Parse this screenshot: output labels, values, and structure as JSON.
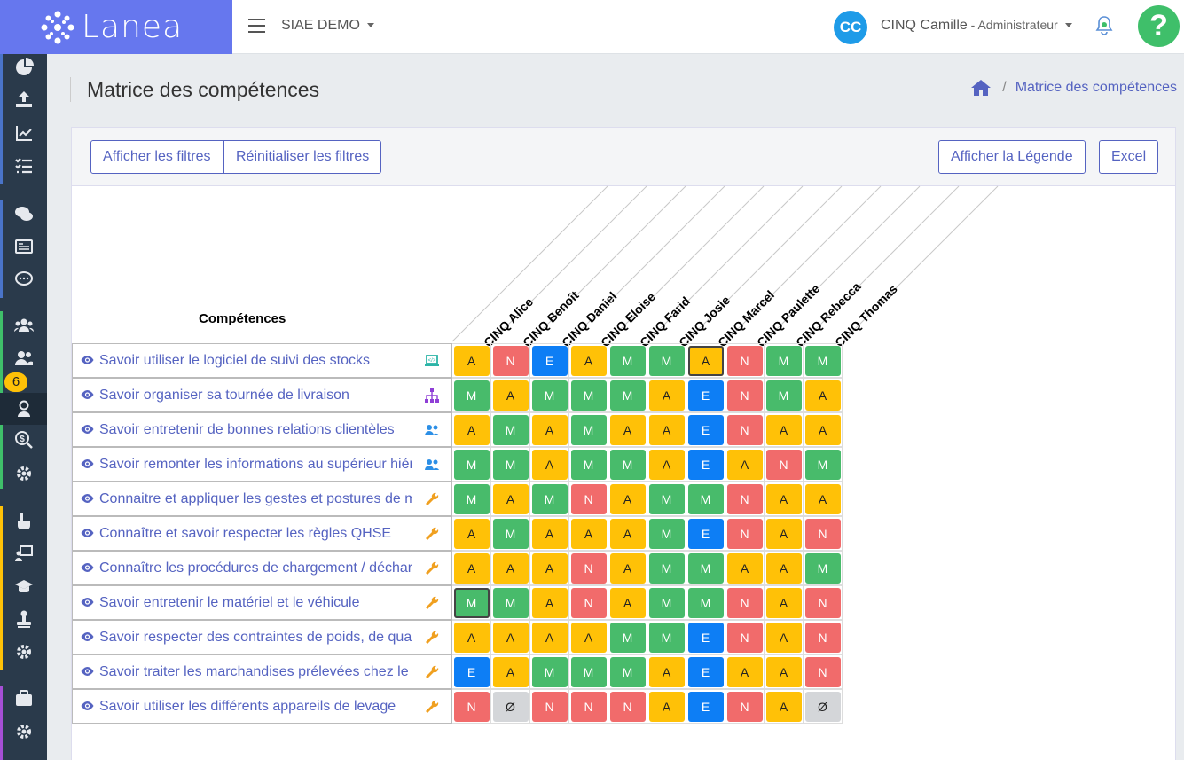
{
  "app": {
    "brand": "Lanea",
    "org": "SIAE DEMO",
    "avatar_initials": "CC",
    "user_name": "CINQ Camille",
    "user_role": " - Administrateur",
    "help": "?",
    "badge_count": "6"
  },
  "page": {
    "title": "Matrice des compétences",
    "breadcrumb": "Matrice des compétences"
  },
  "toolbar": {
    "show_filters": "Afficher les filtres",
    "reset_filters": "Réinitialiser les filtres",
    "show_legend": "Afficher la Légende",
    "excel": "Excel"
  },
  "matrix": {
    "competences_header": "Compétences",
    "people": [
      "CINQ Alice",
      "CINQ Benoît",
      "CINQ Daniel",
      "CINQ Eloise",
      "CINQ Farid",
      "CINQ Josie",
      "CINQ Marcel",
      "CINQ Paulette",
      "CINQ Rebecca",
      "CINQ Thomas"
    ],
    "rows": [
      {
        "label": "Savoir utiliser le logiciel de suivi des stocks",
        "icon": "laptop-icon",
        "values": [
          "A",
          "N",
          "E",
          "A",
          "M",
          "M",
          "A",
          "N",
          "M",
          "M"
        ]
      },
      {
        "label": "Savoir organiser sa tournée de livraison",
        "icon": "sitemap-icon",
        "values": [
          "M",
          "A",
          "M",
          "M",
          "M",
          "A",
          "E",
          "N",
          "M",
          "A"
        ]
      },
      {
        "label": "Savoir entretenir de bonnes relations clientèles",
        "icon": "users-icon",
        "values": [
          "A",
          "M",
          "A",
          "M",
          "A",
          "A",
          "E",
          "N",
          "A",
          "A"
        ]
      },
      {
        "label": "Savoir remonter les informations au supérieur hiérarchique",
        "icon": "users-icon",
        "values": [
          "M",
          "M",
          "A",
          "M",
          "M",
          "A",
          "E",
          "A",
          "N",
          "M"
        ]
      },
      {
        "label": "Connaitre et appliquer les gestes et postures de manutention",
        "icon": "wrench-icon",
        "values": [
          "M",
          "A",
          "M",
          "N",
          "A",
          "M",
          "M",
          "N",
          "A",
          "A"
        ]
      },
      {
        "label": "Connaître et savoir respecter les règles QHSE",
        "icon": "wrench-icon",
        "values": [
          "A",
          "M",
          "A",
          "A",
          "A",
          "M",
          "E",
          "N",
          "A",
          "N"
        ]
      },
      {
        "label": "Connaître les procédures de chargement / déchargement",
        "icon": "wrench-icon",
        "values": [
          "A",
          "A",
          "A",
          "N",
          "A",
          "M",
          "M",
          "A",
          "A",
          "M"
        ]
      },
      {
        "label": "Savoir entretenir le matériel et le véhicule",
        "icon": "wrench-icon",
        "values": [
          "M",
          "M",
          "A",
          "N",
          "A",
          "M",
          "M",
          "N",
          "A",
          "N"
        ]
      },
      {
        "label": "Savoir respecter des contraintes de poids, de quantité",
        "icon": "wrench-icon",
        "values": [
          "A",
          "A",
          "A",
          "A",
          "M",
          "M",
          "E",
          "N",
          "A",
          "N"
        ]
      },
      {
        "label": "Savoir traiter les marchandises prélevées chez le client",
        "icon": "wrench-icon",
        "values": [
          "E",
          "A",
          "M",
          "M",
          "M",
          "A",
          "E",
          "A",
          "A",
          "N"
        ]
      },
      {
        "label": "Savoir utiliser les différents appareils de levage",
        "icon": "wrench-icon",
        "values": [
          "N",
          "Ø",
          "N",
          "N",
          "N",
          "A",
          "E",
          "N",
          "A",
          "Ø"
        ]
      }
    ],
    "selected_cells": [
      [
        0,
        6
      ],
      [
        7,
        0
      ]
    ],
    "level_colors": {
      "A": "#ffc107",
      "M": "#48bb6b",
      "E": "#0d7ef5",
      "N": "#f16b6b",
      "Ø": "#d4d6d9"
    }
  },
  "sidebar": {
    "items": [
      "pie-chart-icon",
      "upload-icon",
      "line-chart-icon",
      "checklist-icon",
      "chat-icon",
      "newspaper-icon",
      "comment-icon",
      "users-icon",
      "team-icon",
      "person-icon",
      "money-search-icon",
      "gear-icon",
      "hand-point-icon",
      "chalkboard-icon",
      "graduation-cap-icon",
      "stamp-icon",
      "gear-icon",
      "briefcase-icon",
      "gear-icon"
    ]
  }
}
